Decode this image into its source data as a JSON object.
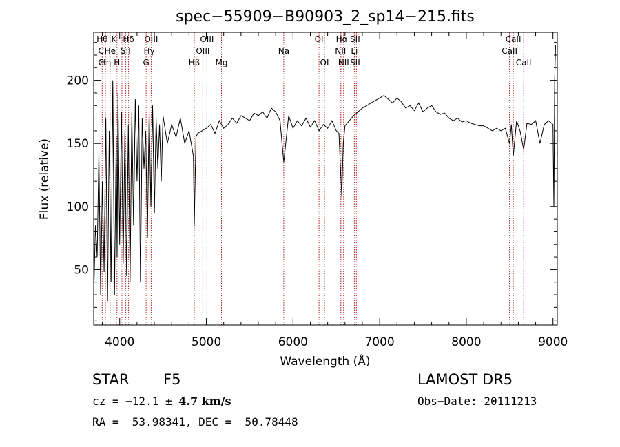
{
  "chart_data": {
    "type": "line",
    "title": "spec−55909−B90903_2_sp14−215.fits",
    "xlabel": "Wavelength (Å)",
    "ylabel": "Flux (relative)",
    "xlim": [
      3700,
      9050
    ],
    "ylim": [
      6,
      238
    ],
    "xticks": [
      4000,
      5000,
      6000,
      7000,
      8000,
      9000
    ],
    "yticks": [
      50,
      100,
      150,
      200
    ],
    "grid": false,
    "series": [
      {
        "x": [
          3700,
          3720,
          3740,
          3760,
          3780,
          3800,
          3820,
          3840,
          3860,
          3880,
          3900,
          3920,
          3940,
          3960,
          3970,
          3980,
          4000,
          4020,
          4040,
          4060,
          4080,
          4100,
          4120,
          4140,
          4160,
          4180,
          4200,
          4220,
          4240,
          4260,
          4280,
          4300,
          4320,
          4340,
          4360,
          4380,
          4400,
          4420,
          4440,
          4460,
          4480,
          4500,
          4550,
          4600,
          4650,
          4700,
          4750,
          4800,
          4850,
          4861,
          4880,
          4900,
          4950,
          5000,
          5050,
          5100,
          5150,
          5200,
          5250,
          5300,
          5350,
          5400,
          5450,
          5500,
          5550,
          5600,
          5650,
          5700,
          5750,
          5800,
          5850,
          5893,
          5950,
          6000,
          6050,
          6100,
          6150,
          6200,
          6250,
          6300,
          6350,
          6400,
          6450,
          6500,
          6530,
          6563,
          6580,
          6600,
          6650,
          6700,
          6750,
          6800,
          6850,
          6900,
          6950,
          7000,
          7050,
          7100,
          7150,
          7200,
          7250,
          7300,
          7350,
          7400,
          7450,
          7500,
          7550,
          7600,
          7650,
          7700,
          7750,
          7800,
          7850,
          7900,
          7950,
          8000,
          8050,
          8100,
          8150,
          8200,
          8250,
          8300,
          8350,
          8400,
          8450,
          8498,
          8520,
          8542,
          8580,
          8620,
          8662,
          8700,
          8750,
          8800,
          8850,
          8900,
          8950,
          9000,
          9010,
          9020,
          9030
        ],
        "y": [
          28,
          85,
          60,
          142,
          30,
          120,
          48,
          170,
          25,
          160,
          40,
          200,
          30,
          155,
          60,
          190,
          70,
          175,
          55,
          160,
          45,
          165,
          40,
          175,
          85,
          185,
          120,
          180,
          40,
          170,
          130,
          160,
          75,
          175,
          100,
          180,
          95,
          170,
          130,
          165,
          120,
          172,
          150,
          165,
          155,
          170,
          150,
          160,
          140,
          85,
          155,
          158,
          160,
          162,
          165,
          158,
          168,
          162,
          165,
          170,
          166,
          172,
          170,
          168,
          174,
          172,
          175,
          170,
          178,
          175,
          168,
          135,
          172,
          162,
          168,
          164,
          170,
          163,
          168,
          160,
          165,
          162,
          168,
          160,
          158,
          108,
          150,
          164,
          168,
          172,
          175,
          178,
          180,
          182,
          184,
          186,
          188,
          185,
          182,
          186,
          183,
          178,
          180,
          176,
          182,
          175,
          178,
          180,
          175,
          173,
          174,
          170,
          168,
          170,
          167,
          168,
          166,
          165,
          164,
          164,
          162,
          160,
          162,
          160,
          162,
          150,
          165,
          140,
          168,
          160,
          145,
          166,
          165,
          168,
          150,
          165,
          168,
          165,
          100,
          200,
          228
        ]
      }
    ],
    "lines": [
      {
        "x": 3798,
        "labels": [
          "Hθ",
          "Cl",
          "Cl"
        ]
      },
      {
        "x": 3835,
        "labels": [
          "",
          "",
          "Hη"
        ]
      },
      {
        "x": 3889,
        "labels": [
          "",
          "He",
          ""
        ]
      },
      {
        "x": 3934,
        "labels": [
          "K",
          "",
          ""
        ]
      },
      {
        "x": 3969,
        "labels": [
          "",
          "",
          "H"
        ]
      },
      {
        "x": 4026,
        "labels": [
          "",
          "",
          ""
        ]
      },
      {
        "x": 4069,
        "labels": [
          "",
          "SII",
          ""
        ]
      },
      {
        "x": 4102,
        "labels": [
          "Hδ",
          "",
          ""
        ]
      },
      {
        "x": 4305,
        "labels": [
          "",
          "",
          "G"
        ]
      },
      {
        "x": 4341,
        "labels": [
          "",
          "Hγ",
          ""
        ]
      },
      {
        "x": 4363,
        "labels": [
          "OIII",
          "",
          ""
        ]
      },
      {
        "x": 4861,
        "labels": [
          "",
          "",
          "Hβ"
        ]
      },
      {
        "x": 4959,
        "labels": [
          "",
          "OIII",
          ""
        ]
      },
      {
        "x": 5007,
        "labels": [
          "OIII",
          "",
          ""
        ]
      },
      {
        "x": 5175,
        "labels": [
          "",
          "",
          "Mg"
        ]
      },
      {
        "x": 5893,
        "labels": [
          "",
          "Na",
          ""
        ]
      },
      {
        "x": 6300,
        "labels": [
          "OI",
          "",
          ""
        ]
      },
      {
        "x": 6363,
        "labels": [
          "",
          "",
          "OI"
        ]
      },
      {
        "x": 6548,
        "labels": [
          "",
          "NII",
          ""
        ]
      },
      {
        "x": 6563,
        "labels": [
          "Hα",
          "",
          ""
        ]
      },
      {
        "x": 6584,
        "labels": [
          "",
          "",
          "NII"
        ]
      },
      {
        "x": 6708,
        "labels": [
          "",
          "Li",
          ""
        ]
      },
      {
        "x": 6716,
        "labels": [
          "SII",
          "",
          "SII"
        ]
      },
      {
        "x": 6731,
        "labels": [
          "",
          "",
          ""
        ]
      },
      {
        "x": 8498,
        "labels": [
          "",
          "CaII",
          ""
        ]
      },
      {
        "x": 8542,
        "labels": [
          "CaII",
          "",
          ""
        ]
      },
      {
        "x": 8662,
        "labels": [
          "",
          "",
          "CaII"
        ]
      }
    ]
  },
  "info": {
    "object_class": "STAR",
    "subclass": "F5",
    "survey": "LAMOST DR5",
    "cz_label": "cz = −12.1 ± ",
    "cz_value": "4.7 km/s",
    "obs_date": "Obs−Date: 20111213",
    "coords": "RA =  53.98341, DEC =  50.78448"
  }
}
